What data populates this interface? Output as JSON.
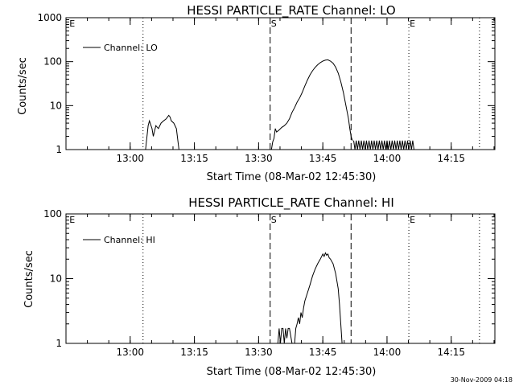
{
  "footer": {
    "timestamp": "30-Nov-2009 04:18"
  },
  "colors": {
    "background": "#ffffff",
    "ink": "#000000"
  },
  "chart_data": [
    {
      "type": "line",
      "title": "HESSI PARTICLE_RATE Channel: LO",
      "xlabel": "Start Time (08-Mar-02 12:45:30)",
      "ylabel": "Counts/sec",
      "yscale": "log",
      "xlim": [
        12.75,
        14.42
      ],
      "ylim": [
        1,
        1000
      ],
      "x_ticks": [
        "13:00",
        "13:15",
        "13:30",
        "13:45",
        "14:00",
        "14:15"
      ],
      "y_ticks": [
        "1",
        "10",
        "100",
        "1000"
      ],
      "legend": {
        "entries": [
          "Channel: LO"
        ],
        "position": "top-left"
      },
      "grid": false,
      "flags": [
        {
          "label": "E",
          "time": 12.76,
          "style": "none"
        },
        {
          "label": "",
          "time": 13.05,
          "style": "dotted"
        },
        {
          "label": "S",
          "time": 13.545,
          "style": "dashed"
        },
        {
          "label": "",
          "time": 13.86,
          "style": "dashed"
        },
        {
          "label": "E",
          "time": 14.085,
          "style": "dotted"
        },
        {
          "label": "",
          "time": 14.36,
          "style": "dotted"
        }
      ],
      "series": [
        {
          "name": "Channel: LO",
          "segments": [
            [
              [
                13.06,
                1
              ],
              [
                13.07,
                3.5
              ],
              [
                13.075,
                4.5
              ],
              [
                13.085,
                3.0
              ],
              [
                13.09,
                2.0
              ],
              [
                13.1,
                3.5
              ],
              [
                13.11,
                3.0
              ],
              [
                13.12,
                4.0
              ],
              [
                13.13,
                4.5
              ],
              [
                13.14,
                5.0
              ],
              [
                13.15,
                6.0
              ],
              [
                13.155,
                5.5
              ],
              [
                13.16,
                4.5
              ],
              [
                13.17,
                4.0
              ],
              [
                13.18,
                3.0
              ],
              [
                13.19,
                1
              ]
            ],
            [
              [
                13.55,
                1
              ],
              [
                13.555,
                1.5
              ],
              [
                13.56,
                1.8
              ],
              [
                13.565,
                3.0
              ],
              [
                13.57,
                2.5
              ],
              [
                13.58,
                2.8
              ],
              [
                13.59,
                3.2
              ],
              [
                13.6,
                3.5
              ],
              [
                13.61,
                4.0
              ],
              [
                13.62,
                5.0
              ],
              [
                13.63,
                7.0
              ],
              [
                13.64,
                9.0
              ],
              [
                13.65,
                12
              ],
              [
                13.66,
                15
              ],
              [
                13.67,
                20
              ],
              [
                13.68,
                28
              ],
              [
                13.69,
                38
              ],
              [
                13.7,
                50
              ],
              [
                13.71,
                62
              ],
              [
                13.72,
                74
              ],
              [
                13.73,
                85
              ],
              [
                13.74,
                95
              ],
              [
                13.75,
                103
              ],
              [
                13.76,
                108
              ],
              [
                13.77,
                110
              ],
              [
                13.78,
                103
              ],
              [
                13.79,
                92
              ],
              [
                13.8,
                75
              ],
              [
                13.81,
                55
              ],
              [
                13.82,
                35
              ],
              [
                13.83,
                20
              ],
              [
                13.84,
                10
              ],
              [
                13.85,
                5
              ],
              [
                13.855,
                3
              ],
              [
                13.86,
                2
              ],
              [
                13.865,
                1.6
              ]
            ],
            [
              [
                13.87,
                1.6
              ],
              [
                13.875,
                1
              ],
              [
                13.88,
                1.6
              ],
              [
                13.885,
                1
              ],
              [
                13.89,
                1.6
              ],
              [
                13.895,
                1
              ],
              [
                13.9,
                1.6
              ],
              [
                13.905,
                1
              ],
              [
                13.91,
                1.6
              ],
              [
                13.915,
                1
              ],
              [
                13.92,
                1.6
              ],
              [
                13.925,
                1
              ],
              [
                13.93,
                1.6
              ],
              [
                13.935,
                1
              ],
              [
                13.94,
                1.6
              ],
              [
                13.945,
                1
              ],
              [
                13.95,
                1.6
              ],
              [
                13.955,
                1
              ],
              [
                13.96,
                1.6
              ],
              [
                13.965,
                1
              ],
              [
                13.97,
                1.6
              ],
              [
                13.975,
                1
              ],
              [
                13.98,
                1.6
              ],
              [
                13.985,
                1
              ],
              [
                13.99,
                1.6
              ],
              [
                13.995,
                1
              ],
              [
                14.0,
                1.6
              ],
              [
                14.005,
                1
              ],
              [
                14.01,
                1.6
              ],
              [
                14.015,
                1
              ],
              [
                14.02,
                1.6
              ],
              [
                14.025,
                1
              ],
              [
                14.03,
                1.6
              ],
              [
                14.035,
                1
              ],
              [
                14.04,
                1.6
              ],
              [
                14.045,
                1
              ],
              [
                14.05,
                1.6
              ],
              [
                14.055,
                1
              ],
              [
                14.06,
                1.6
              ],
              [
                14.065,
                1
              ],
              [
                14.07,
                1.6
              ],
              [
                14.075,
                1
              ],
              [
                14.08,
                1.6
              ],
              [
                14.085,
                1
              ],
              [
                14.09,
                1.6
              ],
              [
                14.095,
                1
              ],
              [
                14.1,
                1.6
              ],
              [
                14.105,
                1
              ]
            ]
          ]
        }
      ]
    },
    {
      "type": "line",
      "title": "HESSI PARTICLE_RATE Channel: HI",
      "xlabel": "Start Time (08-Mar-02 12:45:30)",
      "ylabel": "Counts/sec",
      "yscale": "log",
      "xlim": [
        12.75,
        14.42
      ],
      "ylim": [
        1,
        100
      ],
      "x_ticks": [
        "13:00",
        "13:15",
        "13:30",
        "13:45",
        "14:00",
        "14:15"
      ],
      "y_ticks": [
        "1",
        "10",
        "100"
      ],
      "legend": {
        "entries": [
          "Channel: HI"
        ],
        "position": "top-left"
      },
      "grid": false,
      "flags": [
        {
          "label": "E",
          "time": 12.76,
          "style": "none"
        },
        {
          "label": "",
          "time": 13.05,
          "style": "dotted"
        },
        {
          "label": "S",
          "time": 13.545,
          "style": "dashed"
        },
        {
          "label": "",
          "time": 13.86,
          "style": "dashed"
        },
        {
          "label": "E",
          "time": 14.085,
          "style": "dotted"
        },
        {
          "label": "",
          "time": 14.36,
          "style": "dotted"
        }
      ],
      "series": [
        {
          "name": "Channel: HI",
          "segments": [
            [
              [
                13.575,
                1
              ],
              [
                13.58,
                1.7
              ],
              [
                13.585,
                1
              ],
              [
                13.59,
                1.7
              ],
              [
                13.595,
                1.7
              ],
              [
                13.6,
                1
              ],
              [
                13.605,
                1.7
              ],
              [
                13.61,
                1.2
              ],
              [
                13.615,
                1.7
              ],
              [
                13.62,
                1.7
              ],
              [
                13.63,
                1
              ],
              [
                13.64,
                1
              ],
              [
                13.645,
                1.7
              ],
              [
                13.65,
                2.0
              ],
              [
                13.655,
                2.5
              ],
              [
                13.66,
                2.0
              ],
              [
                13.665,
                3.0
              ],
              [
                13.67,
                2.5
              ],
              [
                13.675,
                3.5
              ],
              [
                13.68,
                4.5
              ],
              [
                13.69,
                6.0
              ],
              [
                13.7,
                8.0
              ],
              [
                13.71,
                11
              ],
              [
                13.72,
                14
              ],
              [
                13.73,
                17
              ],
              [
                13.74,
                20
              ],
              [
                13.75,
                24
              ],
              [
                13.755,
                22
              ],
              [
                13.76,
                25
              ],
              [
                13.765,
                23
              ],
              [
                13.77,
                24
              ],
              [
                13.775,
                21
              ],
              [
                13.78,
                20
              ],
              [
                13.79,
                17
              ],
              [
                13.8,
                12
              ],
              [
                13.81,
                7
              ],
              [
                13.815,
                4
              ],
              [
                13.82,
                2
              ],
              [
                13.825,
                1
              ]
            ]
          ]
        }
      ]
    }
  ]
}
